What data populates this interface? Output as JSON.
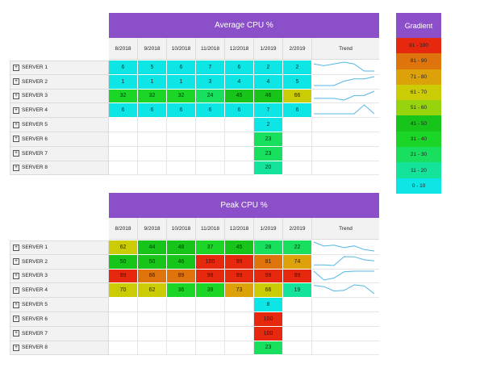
{
  "months": [
    "8/2018",
    "9/2018",
    "10/2018",
    "11/2018",
    "12/2018",
    "1/2019",
    "2/2019"
  ],
  "trend_label": "Trend",
  "colors": {
    "header_purple": "#8a4fc9",
    "scale": {
      "0-10": "#0ee6e6",
      "11-20": "#14e39a",
      "21-30": "#18df5e",
      "31-40": "#1bd627",
      "41-50": "#17c51a",
      "51-60": "#97d40d",
      "61-70": "#cbcc06",
      "71-80": "#dda209",
      "81-90": "#e0740c",
      "91-100": "#e5280e"
    },
    "trend_line": "#54b7e6"
  },
  "legend": {
    "title": "Gradient",
    "items": [
      "91 - 100",
      "81 - 90",
      "71 - 80",
      "61 - 70",
      "51 - 60",
      "41 - 50",
      "31 - 40",
      "21 - 30",
      "11 - 20",
      "0 - 10"
    ]
  },
  "average": {
    "title": "Average CPU %",
    "rows": [
      {
        "label": "SERVER 1",
        "values": [
          6,
          5,
          6,
          7,
          6,
          2,
          2
        ],
        "trend": true
      },
      {
        "label": "SERVER 2",
        "values": [
          1,
          1,
          1,
          3,
          4,
          4,
          5
        ],
        "trend": true
      },
      {
        "label": "SERVER 3",
        "values": [
          32,
          32,
          32,
          24,
          45,
          46,
          66
        ],
        "trend": true
      },
      {
        "label": "SERVER 4",
        "values": [
          6,
          6,
          6,
          6,
          6,
          7,
          6
        ],
        "trend": true
      },
      {
        "label": "SERVER 5",
        "values": [
          null,
          null,
          null,
          null,
          null,
          2,
          null
        ],
        "trend": false
      },
      {
        "label": "SERVER 6",
        "values": [
          null,
          null,
          null,
          null,
          null,
          23,
          null
        ],
        "trend": false
      },
      {
        "label": "SERVER 7",
        "values": [
          null,
          null,
          null,
          null,
          null,
          23,
          null
        ],
        "trend": false
      },
      {
        "label": "SERVER 8",
        "values": [
          null,
          null,
          null,
          null,
          null,
          20,
          null
        ],
        "trend": false
      }
    ]
  },
  "peak": {
    "title": "Peak CPU %",
    "rows": [
      {
        "label": "SERVER 1",
        "values": [
          62,
          44,
          48,
          37,
          45,
          28,
          22
        ],
        "trend": true
      },
      {
        "label": "SERVER 2",
        "values": [
          50,
          50,
          46,
          100,
          99,
          81,
          74
        ],
        "trend": true
      },
      {
        "label": "SERVER 3",
        "values": [
          99,
          86,
          89,
          98,
          99,
          99,
          99
        ],
        "trend": true
      },
      {
        "label": "SERVER 4",
        "values": [
          70,
          62,
          36,
          39,
          73,
          66,
          19
        ],
        "trend": true
      },
      {
        "label": "SERVER 5",
        "values": [
          null,
          null,
          null,
          null,
          null,
          8,
          null
        ],
        "trend": false
      },
      {
        "label": "SERVER 6",
        "values": [
          null,
          null,
          null,
          null,
          null,
          100,
          null
        ],
        "trend": false
      },
      {
        "label": "SERVER 7",
        "values": [
          null,
          null,
          null,
          null,
          null,
          100,
          null
        ],
        "trend": false
      },
      {
        "label": "SERVER 8",
        "values": [
          null,
          null,
          null,
          null,
          null,
          23,
          null
        ],
        "trend": false
      }
    ]
  }
}
